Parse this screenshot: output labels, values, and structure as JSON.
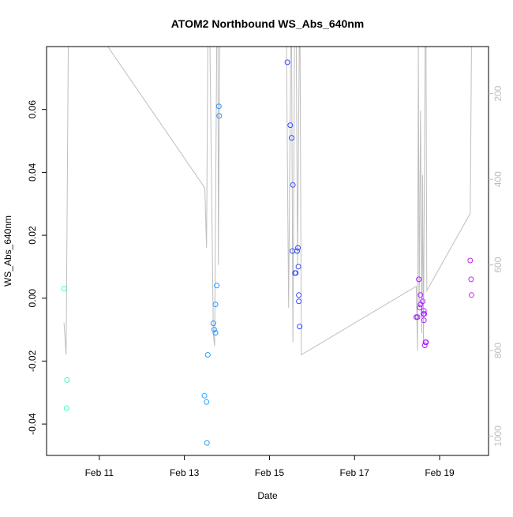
{
  "chart_data": {
    "type": "scatter",
    "title": "ATOM2 Northbound WS_Abs_640nm",
    "xlabel": "Date",
    "ylabel": "WS_Abs_640nm",
    "x_tick_labels": [
      "Feb 11",
      "Feb 13",
      "Feb 15",
      "Feb 17",
      "Feb 19"
    ],
    "x_tick_days": [
      11,
      13,
      15,
      17,
      19
    ],
    "x_range_days": [
      9.76,
      20.15
    ],
    "y_ticks": [
      -0.04,
      -0.02,
      0.0,
      0.02,
      0.04,
      0.06
    ],
    "y_tick_labels": [
      "-0.04",
      "-0.02",
      "0.00",
      "0.02",
      "0.04",
      "0.06"
    ],
    "ylim": [
      -0.05,
      0.08
    ],
    "y2_ticks": [
      200,
      400,
      600,
      800,
      1000
    ],
    "y2_tick_labels": [
      "200",
      "400",
      "600",
      "800",
      "1000"
    ],
    "y2lim": [
      1045,
      90
    ],
    "grid": false,
    "legend": "none",
    "colors": {
      "line": "#bebebe",
      "axis": "#000000",
      "right_axis": "#bebebe",
      "point_scale": [
        "#3dffb6",
        "#2fd9ff",
        "#1f5aff",
        "#7a1fff",
        "#d21fff"
      ]
    },
    "points": [
      {
        "day": 10.17,
        "value": 0.003
      },
      {
        "day": 10.24,
        "value": -0.026
      },
      {
        "day": 10.23,
        "value": -0.035
      },
      {
        "day": 13.47,
        "value": -0.031
      },
      {
        "day": 13.52,
        "value": -0.033
      },
      {
        "day": 13.53,
        "value": -0.046
      },
      {
        "day": 13.55,
        "value": -0.018
      },
      {
        "day": 13.68,
        "value": -0.008
      },
      {
        "day": 13.7,
        "value": -0.01
      },
      {
        "day": 13.73,
        "value": -0.011
      },
      {
        "day": 13.73,
        "value": -0.002
      },
      {
        "day": 13.76,
        "value": 0.004
      },
      {
        "day": 13.81,
        "value": 0.061
      },
      {
        "day": 13.82,
        "value": 0.058
      },
      {
        "day": 15.42,
        "value": 0.075
      },
      {
        "day": 15.49,
        "value": 0.055
      },
      {
        "day": 15.52,
        "value": 0.051
      },
      {
        "day": 15.55,
        "value": 0.036
      },
      {
        "day": 15.54,
        "value": 0.015
      },
      {
        "day": 15.6,
        "value": 0.008
      },
      {
        "day": 15.62,
        "value": 0.008
      },
      {
        "day": 15.65,
        "value": 0.015
      },
      {
        "day": 15.67,
        "value": 0.016
      },
      {
        "day": 15.68,
        "value": 0.01
      },
      {
        "day": 15.69,
        "value": 0.001
      },
      {
        "day": 15.69,
        "value": -0.001
      },
      {
        "day": 15.71,
        "value": -0.009
      },
      {
        "day": 18.45,
        "value": -0.006
      },
      {
        "day": 18.48,
        "value": -0.006
      },
      {
        "day": 18.51,
        "value": 0.006
      },
      {
        "day": 18.55,
        "value": 0.001
      },
      {
        "day": 18.55,
        "value": -0.002
      },
      {
        "day": 18.53,
        "value": -0.003
      },
      {
        "day": 18.6,
        "value": -0.001
      },
      {
        "day": 18.62,
        "value": -0.005
      },
      {
        "day": 18.63,
        "value": -0.004
      },
      {
        "day": 18.63,
        "value": -0.007
      },
      {
        "day": 18.64,
        "value": -0.005
      },
      {
        "day": 18.65,
        "value": -0.015
      },
      {
        "day": 18.67,
        "value": -0.014
      },
      {
        "day": 18.68,
        "value": -0.014
      },
      {
        "day": 19.72,
        "value": 0.012
      },
      {
        "day": 19.74,
        "value": 0.006
      },
      {
        "day": 19.75,
        "value": 0.001
      }
    ],
    "line_series": [
      [
        10.17,
        735
      ],
      [
        10.22,
        810
      ],
      [
        10.27,
        60
      ],
      [
        10.32,
        60
      ],
      [
        11.2,
        60
      ],
      [
        13.48,
        420
      ],
      [
        13.52,
        560
      ],
      [
        13.55,
        60
      ],
      [
        13.6,
        60
      ],
      [
        13.68,
        760
      ],
      [
        13.71,
        790
      ],
      [
        13.76,
        60
      ],
      [
        13.79,
        60
      ],
      [
        13.8,
        600
      ],
      [
        13.83,
        60
      ],
      [
        15.4,
        60
      ],
      [
        15.45,
        700
      ],
      [
        15.5,
        60
      ],
      [
        15.52,
        60
      ],
      [
        15.55,
        780
      ],
      [
        15.59,
        60
      ],
      [
        15.63,
        60
      ],
      [
        15.66,
        600
      ],
      [
        15.7,
        60
      ],
      [
        15.72,
        60
      ],
      [
        15.75,
        810
      ],
      [
        18.45,
        650
      ],
      [
        18.48,
        800
      ],
      [
        18.5,
        60
      ],
      [
        18.52,
        700
      ],
      [
        18.55,
        240
      ],
      [
        18.58,
        760
      ],
      [
        18.6,
        390
      ],
      [
        18.62,
        780
      ],
      [
        18.66,
        60
      ],
      [
        18.68,
        60
      ],
      [
        18.7,
        660
      ],
      [
        19.72,
        480
      ],
      [
        19.75,
        60
      ],
      [
        19.78,
        60
      ]
    ]
  }
}
